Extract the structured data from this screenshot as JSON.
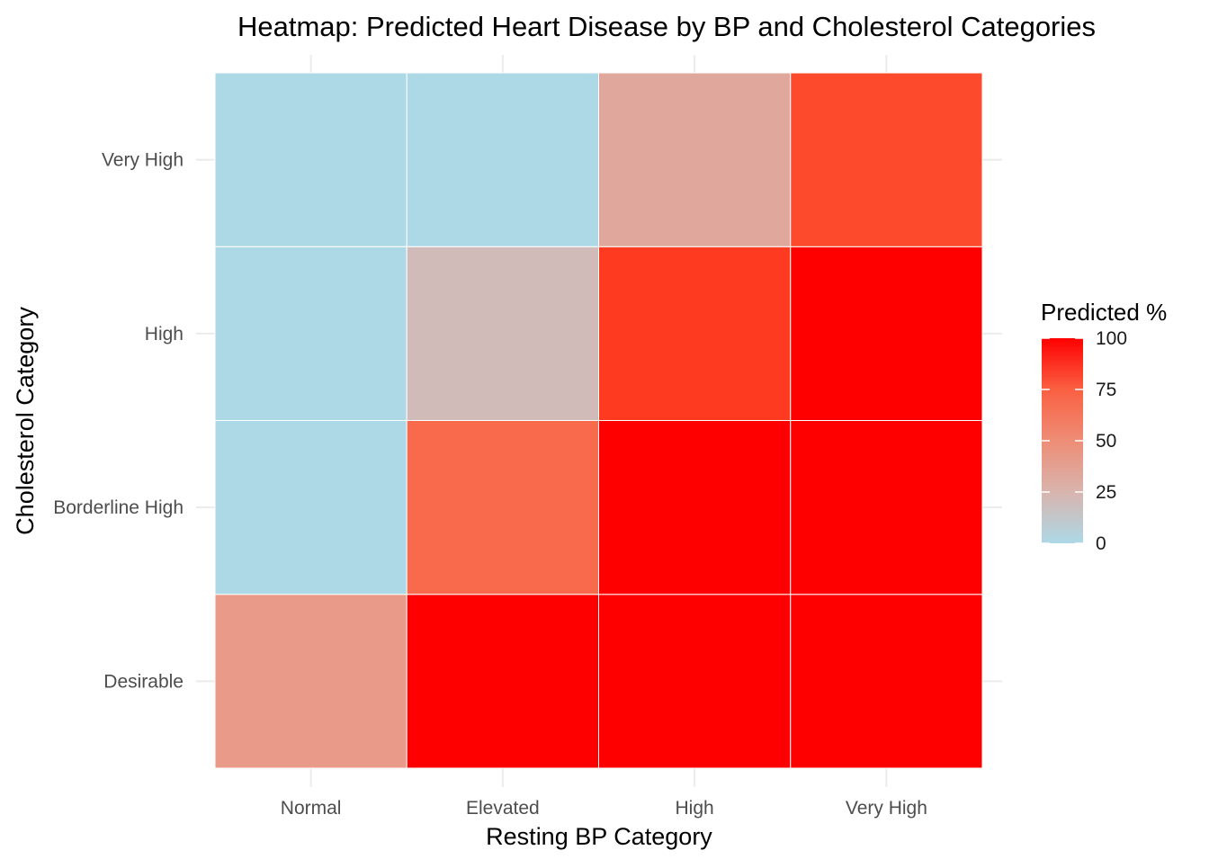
{
  "chart_data": {
    "type": "heatmap",
    "title": "Heatmap: Predicted Heart Disease by BP and Cholesterol Categories",
    "xlabel": "Resting BP Category",
    "ylabel": "Cholesterol Category",
    "x_categories": [
      "Normal",
      "Elevated",
      "High",
      "Very High"
    ],
    "y_categories": [
      "Desirable",
      "Borderline High",
      "High",
      "Very High"
    ],
    "cells": [
      {
        "x": "Normal",
        "y": "Desirable",
        "value": 42
      },
      {
        "x": "Elevated",
        "y": "Desirable",
        "value": 100
      },
      {
        "x": "High",
        "y": "Desirable",
        "value": 100
      },
      {
        "x": "Very High",
        "y": "Desirable",
        "value": 100
      },
      {
        "x": "Normal",
        "y": "Borderline High",
        "value": 0
      },
      {
        "x": "Elevated",
        "y": "Borderline High",
        "value": 70
      },
      {
        "x": "High",
        "y": "Borderline High",
        "value": 100
      },
      {
        "x": "Very High",
        "y": "Borderline High",
        "value": 100
      },
      {
        "x": "Normal",
        "y": "High",
        "value": 0
      },
      {
        "x": "Elevated",
        "y": "High",
        "value": 20
      },
      {
        "x": "High",
        "y": "High",
        "value": 90
      },
      {
        "x": "Very High",
        "y": "High",
        "value": 100
      },
      {
        "x": "Normal",
        "y": "Very High",
        "value": 0
      },
      {
        "x": "Elevated",
        "y": "Very High",
        "value": 0
      },
      {
        "x": "High",
        "y": "Very High",
        "value": 33
      },
      {
        "x": "Very High",
        "y": "Very High",
        "value": 85
      }
    ],
    "legend": {
      "title": "Predicted %",
      "min": 0,
      "max": 100,
      "ticks": [
        0,
        25,
        50,
        75,
        100
      ],
      "low_color": "#add8e6",
      "high_color": "#ff0000"
    },
    "grid": true
  }
}
